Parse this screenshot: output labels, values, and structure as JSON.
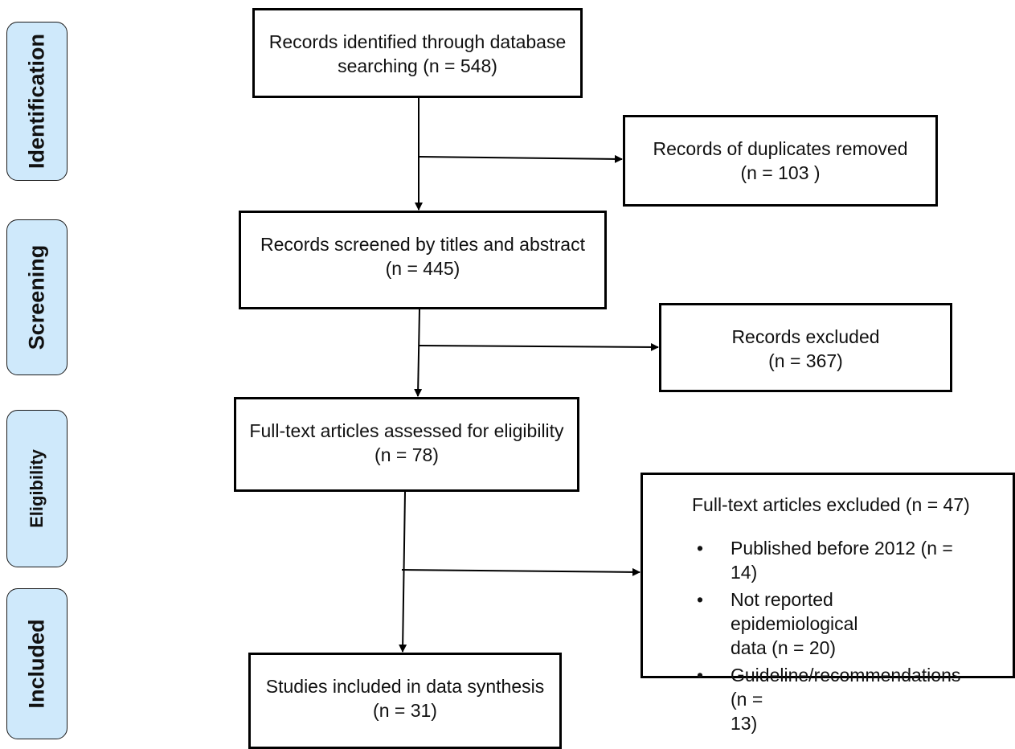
{
  "stages": {
    "identification": "Identification",
    "screening": "Screening",
    "eligibility": "Eligibility",
    "included": "Included"
  },
  "boxes": {
    "identified": {
      "line1": "Records identified through database",
      "line2": "searching (n = 548)"
    },
    "duplicates": {
      "line1": "Records of duplicates removed",
      "line2": "(n = 103 )"
    },
    "screened": {
      "line1": "Records screened by titles and abstract",
      "line2": "(n = 445)"
    },
    "excluded": {
      "line1": "Records excluded",
      "line2": "(n = 367)"
    },
    "fulltext": {
      "line1": "Full-text articles assessed for eligibility",
      "line2": "(n = 78)"
    },
    "fulltext_excluded": {
      "title": "Full-text articles excluded (n = 47)",
      "reasons": [
        {
          "line1": "Published before 2012 (n = 14)",
          "line2": ""
        },
        {
          "line1": "Not reported epidemiological",
          "line2": "data (n = 20)"
        },
        {
          "line1": "Guideline/recommendations (n =",
          "line2": "13)"
        }
      ]
    },
    "included": {
      "line1": "Studies included in data synthesis",
      "line2": "(n = 31)"
    }
  }
}
